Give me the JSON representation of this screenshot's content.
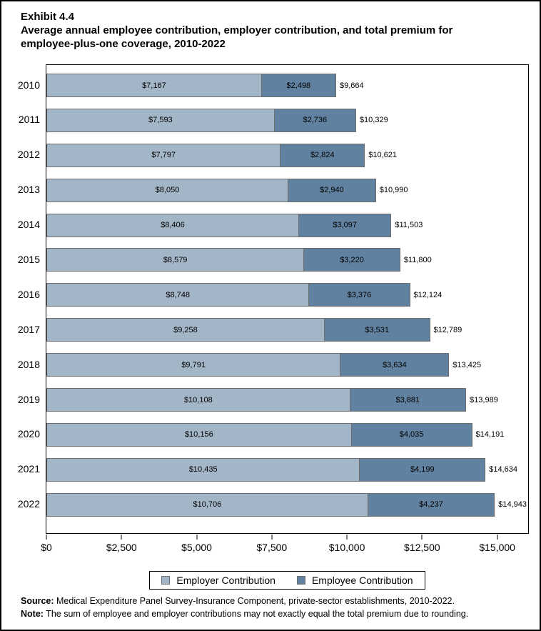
{
  "title": {
    "exhibit": "Exhibit 4.4",
    "text": "Average annual employee contribution, employer contribution, and total premium for employee-plus-one coverage, 2010-2022"
  },
  "colors": {
    "employer": "#a3b6c7",
    "employee": "#60819f",
    "bar_border": "#6e6e6e",
    "axis": "#000000",
    "tick": "#808080"
  },
  "chart_data": {
    "type": "bar",
    "orientation": "horizontal",
    "stacked": true,
    "title": "Average annual employee contribution, employer contribution, and total premium for employee-plus-one coverage, 2010-2022",
    "categories": [
      "2010",
      "2011",
      "2012",
      "2013",
      "2014",
      "2015",
      "2016",
      "2017",
      "2018",
      "2019",
      "2020",
      "2021",
      "2022"
    ],
    "series": [
      {
        "name": "Employer Contribution",
        "values": [
          7167,
          7593,
          7797,
          8050,
          8406,
          8579,
          8748,
          9258,
          9791,
          10108,
          10156,
          10435,
          10706
        ],
        "labels": [
          "$7,167",
          "$7,593",
          "$7,797",
          "$8,050",
          "$8,406",
          "$8,579",
          "$8,748",
          "$9,258",
          "$9,791",
          "$10,108",
          "$10,156",
          "$10,435",
          "$10,706"
        ]
      },
      {
        "name": "Employee Contribution",
        "values": [
          2498,
          2736,
          2824,
          2940,
          3097,
          3220,
          3376,
          3531,
          3634,
          3881,
          4035,
          4199,
          4237
        ],
        "labels": [
          "$2,498",
          "$2,736",
          "$2,824",
          "$2,940",
          "$3,097",
          "$3,220",
          "$3,376",
          "$3,531",
          "$3,634",
          "$3,881",
          "$4,035",
          "$4,199",
          "$4,237"
        ]
      }
    ],
    "totals": {
      "values": [
        9664,
        10329,
        10621,
        10990,
        11503,
        11800,
        12124,
        12789,
        13425,
        13989,
        14191,
        14634,
        14943
      ],
      "labels": [
        "$9,664",
        "$10,329",
        "$10,621",
        "$10,990",
        "$11,503",
        "$11,800",
        "$12,124",
        "$12,789",
        "$13,425",
        "$13,989",
        "$14,191",
        "$14,634",
        "$14,943"
      ]
    },
    "x_axis": {
      "ticks": [
        0,
        2500,
        5000,
        7500,
        10000,
        12500,
        15000
      ],
      "tick_labels": [
        "$0",
        "$2,500",
        "$5,000",
        "$7,500",
        "$10,000",
        "$12,500",
        "$15,000"
      ],
      "range": [
        0,
        16030
      ]
    },
    "grid": false,
    "legend_position": "bottom"
  },
  "legend": {
    "items": [
      {
        "label": "Employer Contribution",
        "color_key": "employer"
      },
      {
        "label": "Employee Contribution",
        "color_key": "employee"
      }
    ]
  },
  "footer": {
    "source_label": "Source:",
    "source_text": " Medical Expenditure Panel Survey-Insurance Component, private-sector establishments, 2010-2022.",
    "note_label": "Note:",
    "note_text": " The sum of employee and employer contributions may not exactly equal the total premium due to rounding."
  }
}
